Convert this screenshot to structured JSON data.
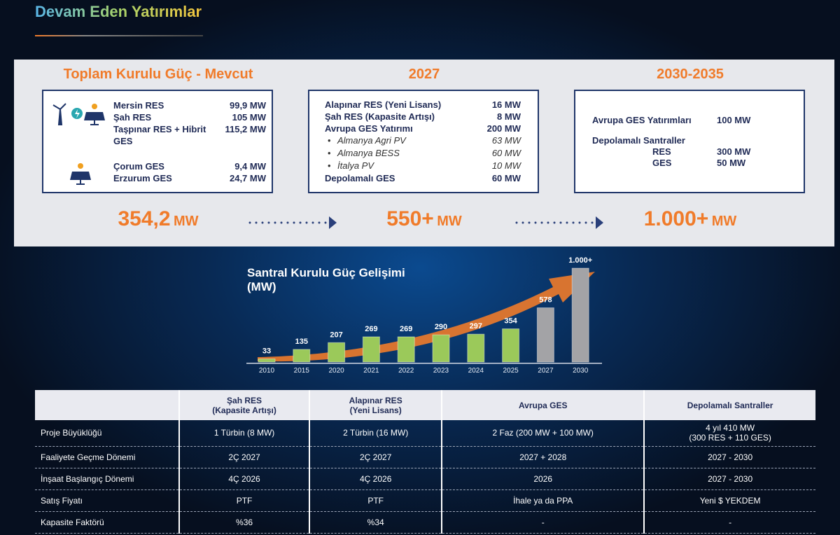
{
  "header": {
    "title": "Devam Eden Yatırımlar"
  },
  "panels": [
    {
      "title": "Toplam Kurulu Güç - Mevcut",
      "total": "354,2",
      "unit": "MW",
      "groups": [
        {
          "rows": [
            {
              "name": "Mersin RES",
              "value": "99,9 MW"
            },
            {
              "name": "Şah RES",
              "value": "105 MW"
            },
            {
              "name": "Taşpınar RES + Hibrit GES",
              "value": "115,2 MW"
            }
          ]
        },
        {
          "rows": [
            {
              "name": "Çorum GES",
              "value": "9,4 MW"
            },
            {
              "name": "Erzurum GES",
              "value": "24,7 MW"
            }
          ]
        }
      ]
    },
    {
      "title": "2027",
      "total": "550+",
      "unit": "MW",
      "groups": [
        {
          "rows": [
            {
              "name": "Alapınar RES (Yeni Lisans)",
              "value": "16 MW"
            },
            {
              "name": "Şah RES (Kapasite Artışı)",
              "value": "8 MW"
            },
            {
              "name": "Avrupa GES Yatırımı",
              "value": "200 MW",
              "items": [
                {
                  "name": "Almanya Agri PV",
                  "value": "63 MW"
                },
                {
                  "name": "Almanya BESS",
                  "value": "60 MW"
                },
                {
                  "name": "İtalya PV",
                  "value": "10 MW"
                }
              ]
            },
            {
              "name": "Depolamalı GES",
              "value": "60 MW"
            }
          ]
        }
      ]
    },
    {
      "title": "2030-2035",
      "total": "1.000+",
      "unit": "MW",
      "groups": [
        {
          "rows": [
            {
              "name": "Avrupa GES Yatırımları",
              "value": "100 MW"
            }
          ]
        },
        {
          "rows": [
            {
              "name": "Depolamalı Santraller",
              "items": [
                {
                  "name": "RES",
                  "value": "300 MW"
                },
                {
                  "name": "GES",
                  "value": "50 MW"
                }
              ]
            }
          ]
        }
      ]
    }
  ],
  "chart_data": {
    "type": "bar",
    "title": "Santral Kurulu Güç Gelişimi (MW)",
    "categories": [
      "2010",
      "2015",
      "2020",
      "2021",
      "2022",
      "2023",
      "2024",
      "2025",
      "2027",
      "2030"
    ],
    "values": [
      33,
      135,
      207,
      269,
      269,
      290,
      297,
      354,
      578,
      1000
    ],
    "value_labels": [
      "33",
      "135",
      "207",
      "269",
      "269",
      "290",
      "297",
      "354",
      "578",
      "1.000+"
    ],
    "colors": [
      "#9bc95a",
      "#9bc95a",
      "#9bc95a",
      "#9bc95a",
      "#9bc95a",
      "#9bc95a",
      "#9bc95a",
      "#9bc95a",
      "#a3a3a6",
      "#a3a3a6"
    ]
  },
  "table": {
    "headers": [
      "Şah RES\n(Kapasite Artışı)",
      "Alapınar RES\n(Yeni Lisans)",
      "Avrupa GES",
      "Depolamalı Santraller"
    ],
    "rows": [
      {
        "label": "Proje Büyüklüğü",
        "cells": [
          "1 Türbin (8 MW)",
          "2 Türbin (16 MW)",
          "2 Faz (200 MW + 100 MW)",
          "4 yıl 410 MW\n(300 RES + 110 GES)"
        ]
      },
      {
        "label": "Faaliyete Geçme Dönemi",
        "cells": [
          "2Ç 2027",
          "2Ç 2027",
          "2027 + 2028",
          "2027 - 2030"
        ]
      },
      {
        "label": "İnşaat Başlangıç Dönemi",
        "cells": [
          "4Ç 2026",
          "4Ç 2026",
          "2026",
          "2027 - 2030"
        ]
      },
      {
        "label": "Satış Fiyatı",
        "cells": [
          "PTF",
          "PTF",
          "İhale ya da PPA",
          "Yeni $ YEKDEM"
        ]
      },
      {
        "label": "Kapasite Faktörü",
        "cells": [
          "%36",
          "%34",
          "-",
          "-"
        ]
      }
    ]
  }
}
